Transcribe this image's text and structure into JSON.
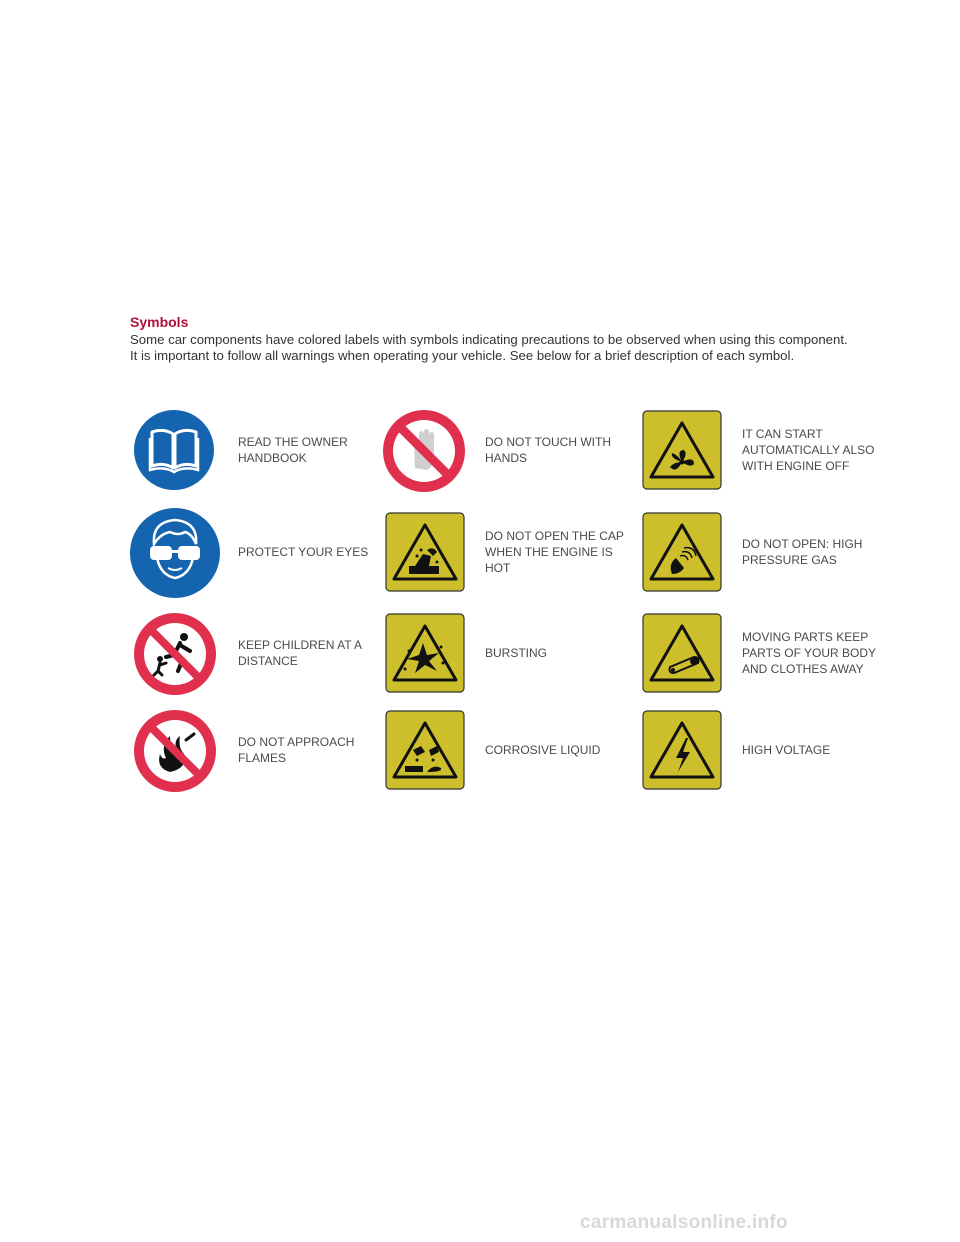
{
  "section": {
    "heading": "Symbols",
    "intro_line1": "Some car components have colored labels with symbols indicating precautions to be observed when using this component.",
    "intro_line2": "It is important to follow all warnings when operating your vehicle. See below for a brief description of each symbol."
  },
  "colors": {
    "heading": "#b0103a",
    "mandatory_blue": "#1464b0",
    "prohibition_red": "#e0304e",
    "warning_yellow": "#cdbf2c"
  },
  "symbols": [
    {
      "icon": "read-handbook-icon",
      "label_lines": [
        "READ THE OWNER",
        "HANDBOOK"
      ]
    },
    {
      "icon": "no-touch-hands-icon",
      "label_lines": [
        "DO NOT TOUCH WITH",
        "HANDS"
      ]
    },
    {
      "icon": "fan-warning-icon",
      "label_lines": [
        "IT CAN START",
        "AUTOMATICALLY ALSO",
        "WITH ENGINE OFF"
      ]
    },
    {
      "icon": "protect-eyes-icon",
      "label_lines": [
        "PROTECT YOUR EYES"
      ]
    },
    {
      "icon": "hot-cap-warning-icon",
      "label_lines": [
        "DO NOT OPEN THE CAP",
        "WHEN THE ENGINE IS",
        "HOT"
      ]
    },
    {
      "icon": "high-pressure-gas-icon",
      "label_lines": [
        "DO NOT OPEN: HIGH",
        "PRESSURE GAS"
      ]
    },
    {
      "icon": "keep-children-away-icon",
      "label_lines": [
        "KEEP CHILDREN AT A",
        "DISTANCE"
      ]
    },
    {
      "icon": "bursting-icon",
      "label_lines": [
        "BURSTING"
      ]
    },
    {
      "icon": "moving-parts-icon",
      "label_lines": [
        "MOVING PARTS KEEP",
        "PARTS OF YOUR BODY",
        "AND CLOTHES AWAY"
      ]
    },
    {
      "icon": "no-flames-icon",
      "label_lines": [
        "DO NOT APPROACH",
        "FLAMES"
      ]
    },
    {
      "icon": "corrosive-liquid-icon",
      "label_lines": [
        "CORROSIVE LIQUID"
      ]
    },
    {
      "icon": "high-voltage-icon",
      "label_lines": [
        "HIGH VOLTAGE"
      ]
    }
  ],
  "footer": {
    "watermark": "carmanualsonline.info"
  }
}
